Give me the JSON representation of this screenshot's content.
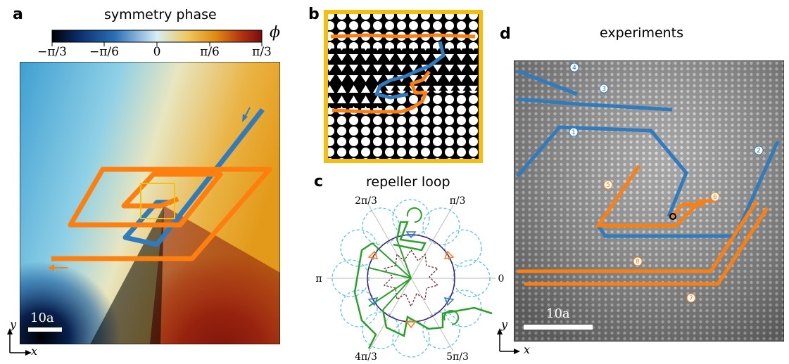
{
  "panels": {
    "a": {
      "label": "a",
      "colorbar_title": "symmetry phase",
      "colorbar_symbol": "ϕ",
      "colorbar_ticks": [
        "−π/3",
        "−π/6",
        "0",
        "π/6",
        "π/3"
      ],
      "scale_label": "10a",
      "axis_y": "y",
      "axis_x": "x",
      "colors": {
        "path_blue": "#2f7bbd",
        "path_orange": "#ff7f0e",
        "highlight_box": "#f4c20d"
      }
    },
    "b": {
      "label": "b",
      "frame_color": "#f5bd0c"
    },
    "c": {
      "label": "c",
      "title": "repeller loop",
      "angles": [
        "2π/3",
        "π/3",
        "π",
        "0",
        "4π/3",
        "5π/3"
      ],
      "colors": {
        "loop": "#2ca02c",
        "circle": "#3b1a7a",
        "petals": "#5bc0de",
        "star": "#5a1a1a"
      }
    },
    "d": {
      "label": "d",
      "title": "experiments",
      "scale_label": "10a",
      "axis_y": "y",
      "axis_x": "x",
      "trajectory_labels_blue": [
        "1",
        "2",
        "3",
        "4"
      ],
      "trajectory_labels_orange": [
        "5",
        "6",
        "7",
        "8"
      ]
    }
  }
}
